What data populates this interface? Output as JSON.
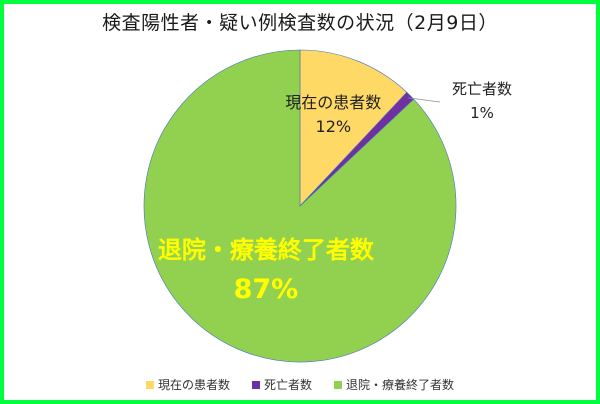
{
  "chart_data": {
    "type": "pie",
    "title": "検査陽性者・疑い例検査数の状況（2月9日）",
    "slices": [
      {
        "name": "現在の患者数",
        "percent_label": "12%",
        "value": 12,
        "color": "#ffd966"
      },
      {
        "name": "死亡者数",
        "percent_label": "1%",
        "value": 1,
        "color": "#7030a0"
      },
      {
        "name": "退院・療養終了者数",
        "percent_label": "87%",
        "value": 87,
        "color": "#92d050"
      }
    ],
    "start_angle_deg": 0,
    "direction": "clockwise",
    "legend_position": "bottom",
    "big_label_color": "#ffff00",
    "frame_color": "#00ff3c"
  }
}
